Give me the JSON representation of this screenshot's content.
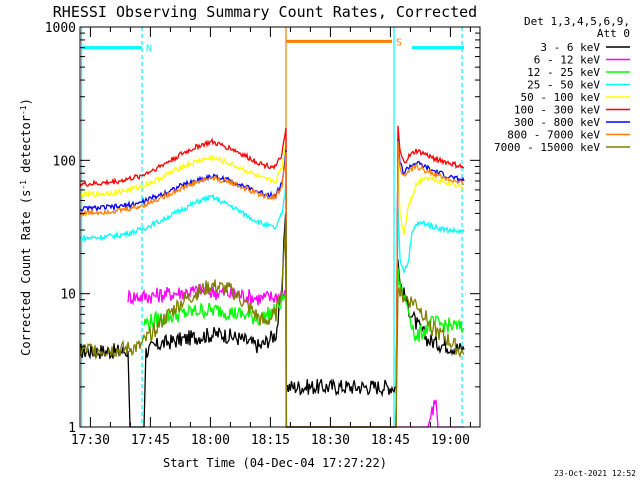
{
  "chart_data": {
    "type": "line",
    "title": "RHESSI Observing Summary Count Rates, Corrected",
    "xlabel": "Start Time (04-Dec-04 17:27:22)",
    "ylabel": "Corrected Count Rate (s⁻¹ detector⁻¹)",
    "ylabel_parts": {
      "main": "Corrected Count Rate (s",
      "sup1": "-1",
      "mid": " detector",
      "sup2": "-1",
      "end": ")"
    },
    "x_unit": "minutes since 17:27:22",
    "xlim": [
      0,
      100
    ],
    "ylim": [
      1,
      1000
    ],
    "y_scale": "log",
    "x_ticks": [
      {
        "x": 2.6,
        "label": "17:30"
      },
      {
        "x": 17.6,
        "label": "17:45"
      },
      {
        "x": 32.6,
        "label": "18:00"
      },
      {
        "x": 47.6,
        "label": "18:15"
      },
      {
        "x": 62.6,
        "label": "18:30"
      },
      {
        "x": 77.6,
        "label": "18:45"
      },
      {
        "x": 92.6,
        "label": "19:00"
      }
    ],
    "y_ticks": [
      {
        "y": 1,
        "label": "1"
      },
      {
        "y": 10,
        "label": "10"
      },
      {
        "y": 100,
        "label": "100"
      },
      {
        "y": 1000,
        "label": "1000"
      }
    ],
    "legend_header": [
      "Det 1,3,4,5,6,9,",
      "Att 0"
    ],
    "legend_placement": "right",
    "flags": [
      {
        "label": "N",
        "x_start": 0.5,
        "x_end": 15.5,
        "y": 700,
        "color": "#00ffff"
      },
      {
        "label": "",
        "x_start": 83,
        "x_end": 96,
        "y": 700,
        "color": "#00ffff"
      },
      {
        "label": "S",
        "x_start": 51.5,
        "x_end": 78,
        "y": 780,
        "color": "#ff7f00"
      }
    ],
    "marker_lines": [
      {
        "x": 0.4,
        "color": "#00ffff",
        "style": "solid"
      },
      {
        "x": 15.5,
        "color": "#00ffff",
        "style": "dashed"
      },
      {
        "x": 51.5,
        "color": "#ff7f00",
        "style": "solid"
      },
      {
        "x": 78.5,
        "color": "#00ffff",
        "style": "solid"
      },
      {
        "x": 95.5,
        "color": "#00ffff",
        "style": "dashed"
      }
    ],
    "series": [
      {
        "name": "3 - 6 keV",
        "color": "#000000",
        "points": [
          [
            0,
            3.7
          ],
          [
            12,
            3.7
          ],
          [
            12.5,
            1
          ],
          [
            16,
            1
          ],
          [
            16.5,
            3.7
          ],
          [
            20,
            4.2
          ],
          [
            25,
            4.5
          ],
          [
            30,
            4.8
          ],
          [
            35,
            5
          ],
          [
            40,
            4.6
          ],
          [
            45,
            4
          ],
          [
            49,
            5
          ],
          [
            50.5,
            10
          ],
          [
            51,
            25
          ],
          [
            51.4,
            40
          ],
          [
            51.6,
            2
          ],
          [
            79,
            2
          ],
          [
            79.5,
            18
          ],
          [
            80,
            12
          ],
          [
            82,
            8
          ],
          [
            84,
            6
          ],
          [
            87,
            4.5
          ],
          [
            90,
            4.2
          ],
          [
            93,
            4
          ],
          [
            96,
            3.8
          ]
        ]
      },
      {
        "name": "6 - 12 keV",
        "color": "#ff00ff",
        "points": [
          [
            12,
            9.5
          ],
          [
            16,
            9.5
          ],
          [
            20,
            9.8
          ],
          [
            25,
            10.2
          ],
          [
            30,
            10.5
          ],
          [
            35,
            10.2
          ],
          [
            40,
            9.8
          ],
          [
            45,
            9.2
          ],
          [
            49,
            9.5
          ],
          [
            51.4,
            10
          ],
          [
            51.6,
            1
          ],
          [
            79,
            1
          ],
          [
            87,
            1
          ],
          [
            88,
            1.3
          ],
          [
            89,
            1.6
          ],
          [
            89.5,
            1
          ],
          [
            96,
            1
          ]
        ]
      },
      {
        "name": "12 - 25 keV",
        "color": "#00ff00",
        "points": [
          [
            16,
            6
          ],
          [
            20,
            6.5
          ],
          [
            25,
            7
          ],
          [
            30,
            7.5
          ],
          [
            35,
            7.5
          ],
          [
            40,
            7
          ],
          [
            45,
            6.5
          ],
          [
            49,
            7.5
          ],
          [
            51.4,
            10
          ],
          [
            51.6,
            1
          ],
          [
            79,
            1
          ],
          [
            79.5,
            14
          ],
          [
            80,
            11
          ],
          [
            82,
            8
          ],
          [
            84,
            4.5
          ],
          [
            85,
            5
          ],
          [
            88,
            6
          ],
          [
            92,
            5.8
          ],
          [
            96,
            5.5
          ]
        ]
      },
      {
        "name": "25 - 50 keV",
        "color": "#00ffff",
        "points": [
          [
            0,
            26
          ],
          [
            5,
            26.5
          ],
          [
            10,
            27.5
          ],
          [
            15,
            30
          ],
          [
            20,
            35
          ],
          [
            25,
            42
          ],
          [
            30,
            50
          ],
          [
            33,
            53
          ],
          [
            38,
            45
          ],
          [
            42,
            38
          ],
          [
            46,
            33
          ],
          [
            49,
            31
          ],
          [
            50.5,
            40
          ],
          [
            51.2,
            55
          ],
          [
            51.5,
            70
          ],
          [
            51.6,
            1
          ],
          [
            79,
            1
          ],
          [
            79.5,
            45
          ],
          [
            80,
            18
          ],
          [
            81,
            15
          ],
          [
            82,
            17
          ],
          [
            83,
            28
          ],
          [
            84,
            33
          ],
          [
            86,
            34
          ],
          [
            88,
            32
          ],
          [
            92,
            30
          ],
          [
            96,
            29
          ]
        ]
      },
      {
        "name": "50 - 100 keV",
        "color": "#ffff00",
        "points": [
          [
            0,
            55
          ],
          [
            5,
            56
          ],
          [
            10,
            58
          ],
          [
            15,
            63
          ],
          [
            20,
            73
          ],
          [
            25,
            88
          ],
          [
            30,
            100
          ],
          [
            33,
            105
          ],
          [
            38,
            93
          ],
          [
            42,
            82
          ],
          [
            46,
            72
          ],
          [
            49,
            70
          ],
          [
            50.5,
            90
          ],
          [
            51.2,
            120
          ],
          [
            51.5,
            150
          ],
          [
            51.6,
            1
          ],
          [
            79,
            1
          ],
          [
            79.5,
            110
          ],
          [
            80,
            40
          ],
          [
            81,
            28
          ],
          [
            82,
            45
          ],
          [
            84,
            65
          ],
          [
            86,
            75
          ],
          [
            88,
            73
          ],
          [
            92,
            68
          ],
          [
            96,
            63
          ]
        ]
      },
      {
        "name": "100 - 300 keV",
        "color": "#ff0000",
        "points": [
          [
            0,
            66
          ],
          [
            5,
            67
          ],
          [
            10,
            70
          ],
          [
            15,
            76
          ],
          [
            20,
            90
          ],
          [
            25,
            110
          ],
          [
            30,
            130
          ],
          [
            33,
            137
          ],
          [
            38,
            122
          ],
          [
            42,
            105
          ],
          [
            46,
            92
          ],
          [
            49,
            90
          ],
          [
            50.5,
            110
          ],
          [
            51.2,
            150
          ],
          [
            51.5,
            175
          ],
          [
            51.6,
            1
          ],
          [
            79,
            1
          ],
          [
            79.5,
            180
          ],
          [
            80,
            115
          ],
          [
            81,
            95
          ],
          [
            82,
            105
          ],
          [
            84,
            118
          ],
          [
            86,
            112
          ],
          [
            88,
            105
          ],
          [
            92,
            96
          ],
          [
            96,
            88
          ]
        ]
      },
      {
        "name": "300 - 800 keV",
        "color": "#0000ff",
        "points": [
          [
            0,
            43
          ],
          [
            5,
            44
          ],
          [
            10,
            45
          ],
          [
            15,
            48
          ],
          [
            20,
            55
          ],
          [
            25,
            64
          ],
          [
            30,
            72
          ],
          [
            33,
            76
          ],
          [
            38,
            70
          ],
          [
            42,
            62
          ],
          [
            46,
            56
          ],
          [
            49,
            55
          ],
          [
            50.5,
            68
          ],
          [
            51.2,
            95
          ],
          [
            51.5,
            120
          ],
          [
            51.6,
            1
          ],
          [
            79,
            1
          ],
          [
            79.5,
            150
          ],
          [
            80,
            95
          ],
          [
            81,
            80
          ],
          [
            82,
            88
          ],
          [
            84,
            96
          ],
          [
            86,
            90
          ],
          [
            88,
            84
          ],
          [
            92,
            76
          ],
          [
            96,
            70
          ]
        ]
      },
      {
        "name": "800 - 7000 keV",
        "color": "#ff7f00",
        "points": [
          [
            0,
            40
          ],
          [
            5,
            41
          ],
          [
            10,
            42
          ],
          [
            15,
            45
          ],
          [
            20,
            52
          ],
          [
            25,
            61
          ],
          [
            30,
            70
          ],
          [
            33,
            74
          ],
          [
            38,
            68
          ],
          [
            42,
            60
          ],
          [
            46,
            54
          ],
          [
            49,
            53
          ],
          [
            50.5,
            65
          ],
          [
            51.2,
            90
          ],
          [
            51.5,
            115
          ],
          [
            51.6,
            1
          ],
          [
            79,
            1
          ],
          [
            79.5,
            140
          ],
          [
            80,
            90
          ],
          [
            81,
            75
          ],
          [
            82,
            82
          ],
          [
            84,
            90
          ],
          [
            86,
            85
          ],
          [
            88,
            80
          ],
          [
            92,
            72
          ],
          [
            96,
            66
          ]
        ]
      },
      {
        "name": "7000 - 15000 keV",
        "color": "#808000",
        "points": [
          [
            0,
            3.8
          ],
          [
            5,
            3.8
          ],
          [
            10,
            3.8
          ],
          [
            15,
            4
          ],
          [
            20,
            6
          ],
          [
            25,
            8.5
          ],
          [
            30,
            10.5
          ],
          [
            33,
            11.5
          ],
          [
            38,
            10.5
          ],
          [
            42,
            8
          ],
          [
            46,
            6
          ],
          [
            49,
            7
          ],
          [
            50.5,
            12
          ],
          [
            51.2,
            25
          ],
          [
            51.5,
            35
          ],
          [
            51.6,
            1
          ],
          [
            79,
            1
          ],
          [
            79.5,
            12
          ],
          [
            80,
            10
          ],
          [
            82,
            9
          ],
          [
            84,
            8.5
          ],
          [
            86,
            7
          ],
          [
            88,
            5.5
          ],
          [
            92,
            4.5
          ],
          [
            96,
            3.5
          ]
        ]
      }
    ]
  },
  "footer": {
    "date_stamp": "23-Oct-2021 12:52"
  }
}
